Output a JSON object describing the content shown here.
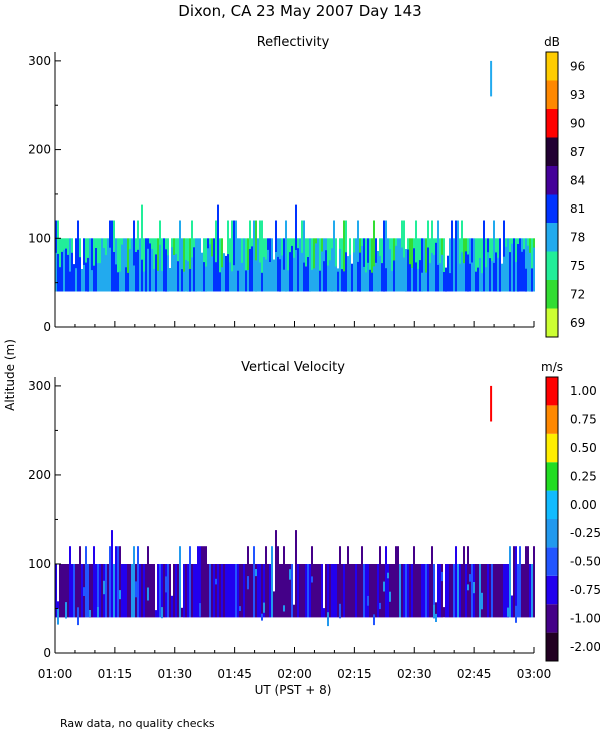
{
  "figure": {
    "title": "Dixon, CA 23 May 2007  Day 143",
    "ylabel": "Altitude (m)",
    "xlabel": "UT  (PST + 8)",
    "footnote": "Raw data, no quality checks"
  },
  "chart_data": [
    {
      "type": "heatmap",
      "title": "Reflectivity",
      "xlabel": "UT  (PST + 8)",
      "ylabel": "Altitude (m)",
      "x_ticks": [
        "01:00",
        "01:15",
        "01:30",
        "01:45",
        "02:00",
        "02:15",
        "02:30",
        "02:45",
        "03:00"
      ],
      "y_ticks": [
        0,
        100,
        200,
        300
      ],
      "ylim": [
        0,
        310
      ],
      "colorbar": {
        "unit": "dB",
        "labels": [
          "69",
          "72",
          "75",
          "78",
          "81",
          "84",
          "87",
          "90",
          "93",
          "96"
        ],
        "colors": [
          "#ccff33",
          "#33dd33",
          "#22ee99",
          "#22aaee",
          "#0033ff",
          "#440099",
          "#220033",
          "#ff0000",
          "#ff8800",
          "#ffcc00"
        ]
      },
      "features": {
        "layer_base_m": 40,
        "dense_top_m": 100,
        "spike_top_m": 120,
        "isolated_echo": {
          "time": "02:49",
          "bottom_m": 260,
          "top_m": 300,
          "value_db": 78
        }
      }
    },
    {
      "type": "heatmap",
      "title": "Vertical Velocity",
      "xlabel": "UT  (PST + 8)",
      "ylabel": "Altitude (m)",
      "x_ticks": [
        "01:00",
        "01:15",
        "01:30",
        "01:45",
        "02:00",
        "02:15",
        "02:30",
        "02:45",
        "03:00"
      ],
      "y_ticks": [
        0,
        100,
        200,
        300
      ],
      "ylim": [
        0,
        310
      ],
      "colorbar": {
        "unit": "m/s",
        "labels": [
          "-2.00",
          "-1.00",
          "-0.75",
          "-0.50",
          "-0.25",
          "0.00",
          "0.25",
          "0.50",
          "0.75",
          "1.00"
        ],
        "colors": [
          "#220022",
          "#440088",
          "#2200ee",
          "#2255ff",
          "#2299ee",
          "#11bbff",
          "#22dd22",
          "#ffee00",
          "#ff8800",
          "#ff0000"
        ]
      },
      "features": {
        "layer_base_m": 40,
        "dense_top_m": 100,
        "spike_top_m": 120,
        "isolated_echo": {
          "time": "02:49",
          "bottom_m": 260,
          "top_m": 300,
          "value_ms": 1.0
        }
      }
    }
  ]
}
